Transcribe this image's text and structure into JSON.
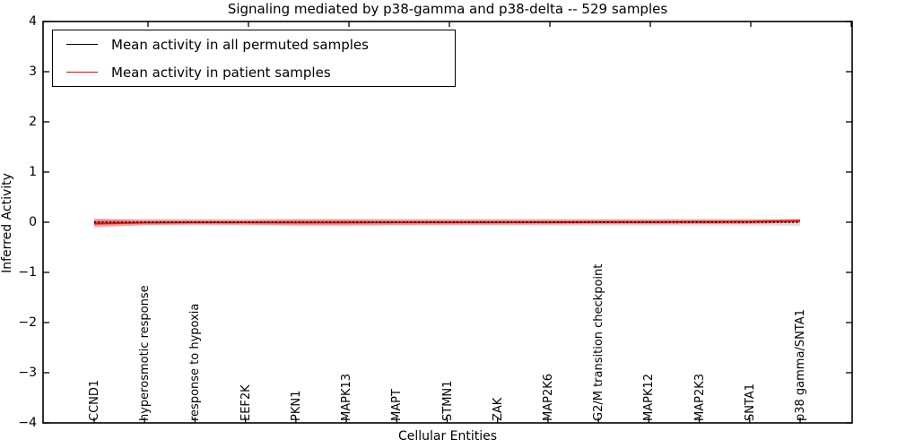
{
  "chart_data": {
    "type": "line",
    "title": "Signaling mediated by p38-gamma and p38-delta -- 529 samples",
    "xlabel": "Cellular Entities",
    "ylabel": "Inferred Activity",
    "ylim": [
      -4,
      4
    ],
    "yticklabels": [
      "4",
      "3",
      "2",
      "1",
      "0",
      "−1",
      "−2",
      "−3",
      "−4"
    ],
    "grid": false,
    "categories": [
      "CCND1",
      "hyperosmotic response",
      "response to hypoxia",
      "EEF2K",
      "PKN1",
      "MAPK13",
      "MAPT",
      "STMN1",
      "ZAK",
      "MAP2K6",
      "G2/M transition checkpoint",
      "MAPK12",
      "MAP2K3",
      "SNTA1",
      "p38 gamma/SNTA1"
    ],
    "series": [
      {
        "name": "Mean activity in all permuted samples",
        "color": "#000000",
        "line_style": "dotted",
        "values": [
          0,
          0,
          0,
          0,
          0,
          0,
          0,
          0,
          0,
          0,
          0,
          0,
          0,
          0,
          0
        ]
      },
      {
        "name": "Mean activity in patient samples",
        "color": "#ff0000",
        "line_style": "solid",
        "values": [
          -0.027,
          -0.01,
          -0.005,
          -0.004,
          -0.006,
          -0.004,
          -0.003,
          -0.002,
          -0.002,
          0.0,
          0.004,
          0.004,
          0.009,
          0.012,
          0.03
        ]
      }
    ],
    "bands": [
      {
        "name": "permuted samples spread",
        "color": "#888888",
        "opacity": 0.28,
        "upper": [
          0.07,
          0.07,
          0.07,
          0.07,
          0.07,
          0.07,
          0.07,
          0.07,
          0.07,
          0.07,
          0.07,
          0.07,
          0.07,
          0.07,
          0.07
        ],
        "lower": [
          -0.07,
          -0.07,
          -0.07,
          -0.07,
          -0.07,
          -0.07,
          -0.07,
          -0.07,
          -0.07,
          -0.07,
          -0.07,
          -0.07,
          -0.07,
          -0.07,
          -0.07
        ]
      },
      {
        "name": "patient samples spread",
        "color": "#ff0000",
        "opacity": 0.3,
        "upper": [
          0.065,
          0.045,
          0.045,
          0.04,
          0.055,
          0.055,
          0.05,
          0.05,
          0.05,
          0.05,
          0.05,
          0.05,
          0.05,
          0.05,
          0.06
        ],
        "lower": [
          -0.105,
          -0.055,
          -0.045,
          -0.05,
          -0.065,
          -0.065,
          -0.055,
          -0.05,
          -0.05,
          -0.045,
          -0.04,
          -0.04,
          -0.035,
          -0.035,
          -0.01
        ]
      }
    ],
    "legend": {
      "position": "upper left",
      "entries": [
        "Mean activity in all permuted samples",
        "Mean activity in patient samples"
      ]
    }
  }
}
